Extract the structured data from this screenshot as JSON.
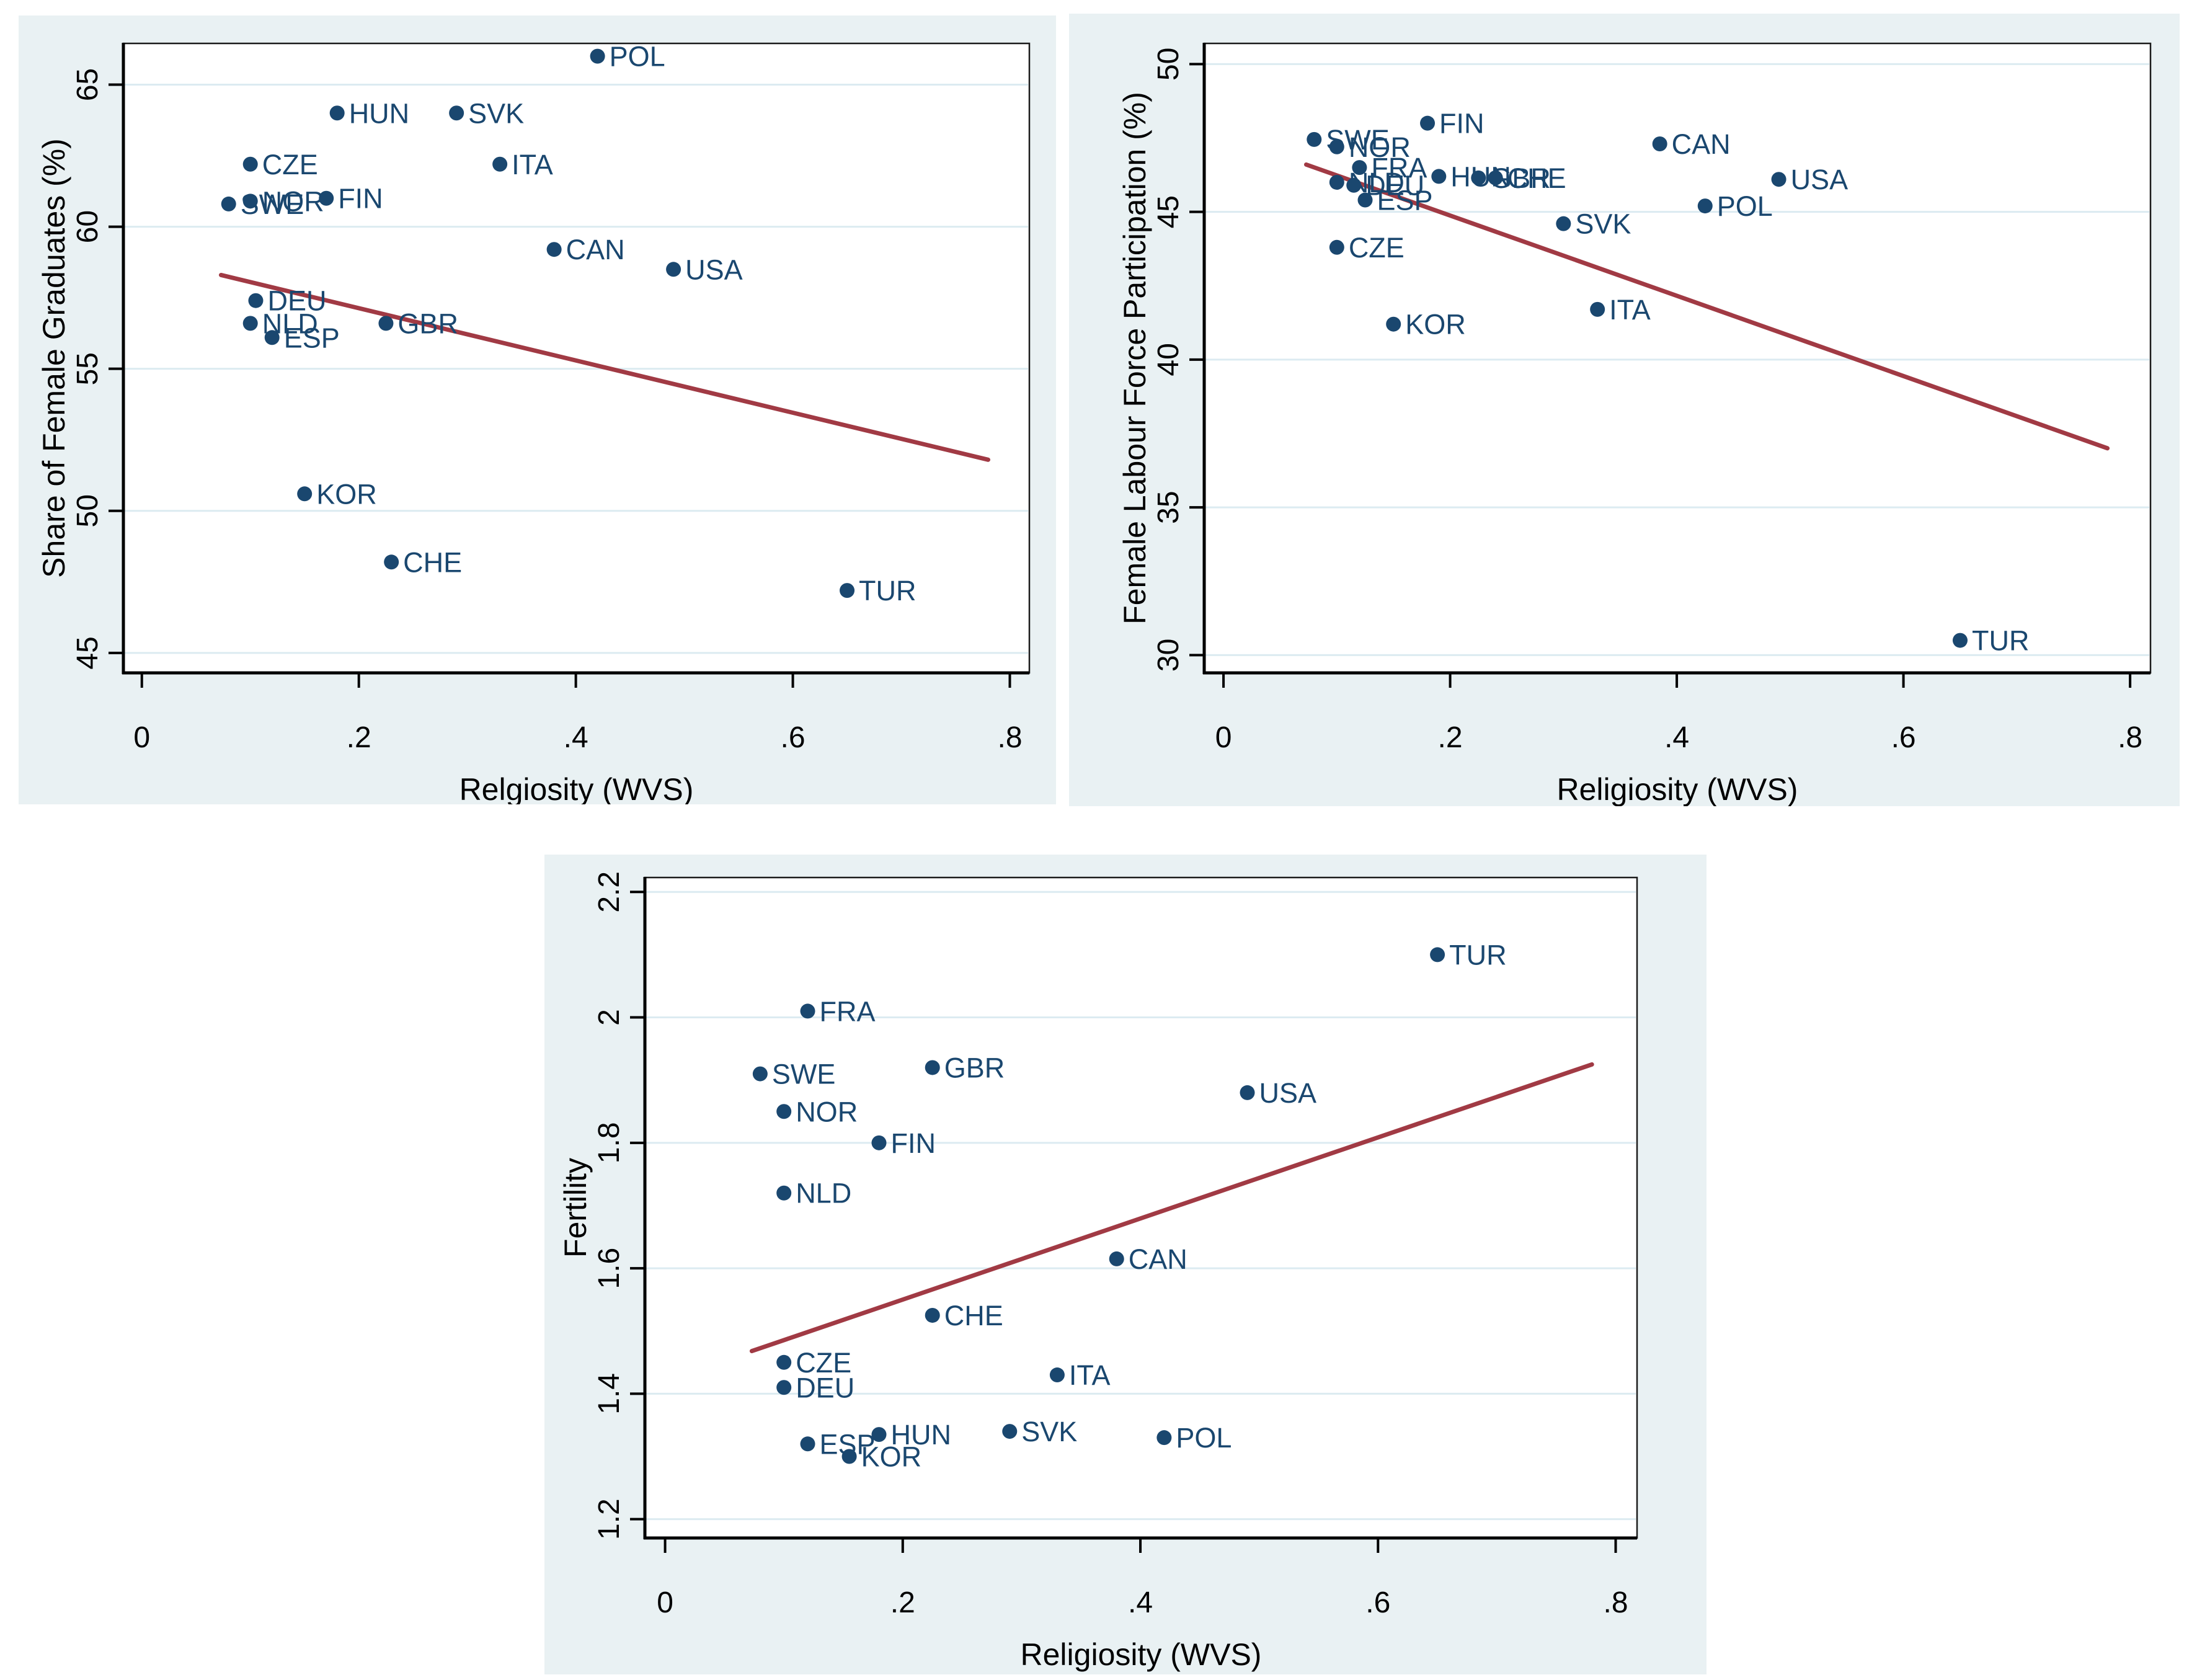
{
  "figure": {
    "description": "Three Stata-style scatter plots of country indicators against religiosity with linear fit lines",
    "panel_count": 3
  },
  "colors": {
    "panel_background": "#e9f1f3",
    "plot_background": "#ffffff",
    "gridline": "#dcebf1",
    "plot_border": "#1b1b1b",
    "axis_line": "#000000",
    "tick_text": "#000000",
    "marker": "#1a476f",
    "marker_label": "#1a476f",
    "fit_line": "#a13a44"
  },
  "chart_data": [
    {
      "id": "share-of-female-graduates",
      "type": "scatter",
      "xlabel": "Relgiosity (WVS)",
      "ylabel": "Share of Female Graduates (%)",
      "xlim": [
        -0.017,
        0.818
      ],
      "ylim": [
        44.3,
        66.45
      ],
      "grid": "horizontal",
      "legend": "none",
      "xticks": [
        {
          "v": 0.0,
          "label": "0"
        },
        {
          "v": 0.2,
          "label": ".2"
        },
        {
          "v": 0.4,
          "label": ".4"
        },
        {
          "v": 0.6,
          "label": ".6"
        },
        {
          "v": 0.8,
          "label": ".8"
        }
      ],
      "yticks": [
        {
          "v": 45,
          "label": "45"
        },
        {
          "v": 50,
          "label": "50"
        },
        {
          "v": 55,
          "label": "55"
        },
        {
          "v": 60,
          "label": "60"
        },
        {
          "v": 65,
          "label": "65"
        }
      ],
      "points": [
        {
          "label": "POL",
          "x": 0.42,
          "y": 66.0
        },
        {
          "label": "HUN",
          "x": 0.18,
          "y": 64.0
        },
        {
          "label": "SVK",
          "x": 0.29,
          "y": 64.0
        },
        {
          "label": "CZE",
          "x": 0.1,
          "y": 62.2
        },
        {
          "label": "ITA",
          "x": 0.33,
          "y": 62.2
        },
        {
          "label": "FIN",
          "x": 0.17,
          "y": 61.0
        },
        {
          "label": "NOR",
          "x": 0.1,
          "y": 60.9
        },
        {
          "label": "SWE",
          "x": 0.08,
          "y": 60.8
        },
        {
          "label": "CAN",
          "x": 0.38,
          "y": 59.2
        },
        {
          "label": "USA",
          "x": 0.49,
          "y": 58.5
        },
        {
          "label": "DEU",
          "x": 0.105,
          "y": 57.4
        },
        {
          "label": "NLD",
          "x": 0.1,
          "y": 56.6
        },
        {
          "label": "GBR",
          "x": 0.225,
          "y": 56.6
        },
        {
          "label": "ESP",
          "x": 0.12,
          "y": 56.1
        },
        {
          "label": "KOR",
          "x": 0.15,
          "y": 50.6
        },
        {
          "label": "CHE",
          "x": 0.23,
          "y": 48.2
        },
        {
          "label": "TUR",
          "x": 0.65,
          "y": 47.2
        }
      ],
      "fit_line": {
        "x1": 0.073,
        "y1": 58.3,
        "x2": 0.78,
        "y2": 51.8
      }
    },
    {
      "id": "female-labour-force-participation",
      "type": "scatter",
      "xlabel": "Religiosity (WVS)",
      "ylabel": "Female Labour Force Participation (%)",
      "xlim": [
        -0.017,
        0.818
      ],
      "ylim": [
        29.4,
        50.7
      ],
      "grid": "horizontal",
      "legend": "none",
      "xticks": [
        {
          "v": 0.0,
          "label": "0"
        },
        {
          "v": 0.2,
          "label": ".2"
        },
        {
          "v": 0.4,
          "label": ".4"
        },
        {
          "v": 0.6,
          "label": ".6"
        },
        {
          "v": 0.8,
          "label": ".8"
        }
      ],
      "yticks": [
        {
          "v": 30,
          "label": "30"
        },
        {
          "v": 35,
          "label": "35"
        },
        {
          "v": 40,
          "label": "40"
        },
        {
          "v": 45,
          "label": "45"
        },
        {
          "v": 50,
          "label": "50"
        }
      ],
      "points": [
        {
          "label": "FIN",
          "x": 0.18,
          "y": 48.0
        },
        {
          "label": "SWE",
          "x": 0.08,
          "y": 47.45
        },
        {
          "label": "NOR",
          "x": 0.1,
          "y": 47.2
        },
        {
          "label": "CAN",
          "x": 0.385,
          "y": 47.3
        },
        {
          "label": "FRA",
          "x": 0.12,
          "y": 46.5
        },
        {
          "label": "HUN",
          "x": 0.19,
          "y": 46.2
        },
        {
          "label": "GBR",
          "x": 0.225,
          "y": 46.15
        },
        {
          "label": "CHE",
          "x": 0.24,
          "y": 46.15
        },
        {
          "label": "USA",
          "x": 0.49,
          "y": 46.1
        },
        {
          "label": "NLD",
          "x": 0.1,
          "y": 46.0
        },
        {
          "label": "DEU",
          "x": 0.115,
          "y": 45.9
        },
        {
          "label": "ESP",
          "x": 0.125,
          "y": 45.4
        },
        {
          "label": "POL",
          "x": 0.425,
          "y": 45.2
        },
        {
          "label": "SVK",
          "x": 0.3,
          "y": 44.6
        },
        {
          "label": "CZE",
          "x": 0.1,
          "y": 43.8
        },
        {
          "label": "ITA",
          "x": 0.33,
          "y": 41.7
        },
        {
          "label": "KOR",
          "x": 0.15,
          "y": 41.2
        },
        {
          "label": "TUR",
          "x": 0.65,
          "y": 30.5
        }
      ],
      "fit_line": {
        "x1": 0.073,
        "y1": 46.6,
        "x2": 0.78,
        "y2": 37.0
      }
    },
    {
      "id": "fertility",
      "type": "scatter",
      "xlabel": "Religiosity (WVS)",
      "ylabel": "Fertility",
      "xlim": [
        -0.017,
        0.818
      ],
      "ylim": [
        1.17,
        2.223
      ],
      "grid": "horizontal",
      "legend": "none",
      "xticks": [
        {
          "v": 0.0,
          "label": "0"
        },
        {
          "v": 0.2,
          "label": ".2"
        },
        {
          "v": 0.4,
          "label": ".4"
        },
        {
          "v": 0.6,
          "label": ".6"
        },
        {
          "v": 0.8,
          "label": ".8"
        }
      ],
      "yticks": [
        {
          "v": 1.2,
          "label": "1.2"
        },
        {
          "v": 1.4,
          "label": "1.4"
        },
        {
          "v": 1.6,
          "label": "1.6"
        },
        {
          "v": 1.8,
          "label": "1.8"
        },
        {
          "v": 2.0,
          "label": "2"
        },
        {
          "v": 2.2,
          "label": "2.2"
        }
      ],
      "points": [
        {
          "label": "TUR",
          "x": 0.65,
          "y": 2.1
        },
        {
          "label": "FRA",
          "x": 0.12,
          "y": 2.01
        },
        {
          "label": "GBR",
          "x": 0.225,
          "y": 1.92
        },
        {
          "label": "SWE",
          "x": 0.08,
          "y": 1.91
        },
        {
          "label": "USA",
          "x": 0.49,
          "y": 1.88
        },
        {
          "label": "NOR",
          "x": 0.1,
          "y": 1.85
        },
        {
          "label": "FIN",
          "x": 0.18,
          "y": 1.8
        },
        {
          "label": "NLD",
          "x": 0.1,
          "y": 1.72
        },
        {
          "label": "CAN",
          "x": 0.38,
          "y": 1.615
        },
        {
          "label": "CHE",
          "x": 0.225,
          "y": 1.525
        },
        {
          "label": "CZE",
          "x": 0.1,
          "y": 1.45
        },
        {
          "label": "ITA",
          "x": 0.33,
          "y": 1.43
        },
        {
          "label": "DEU",
          "x": 0.1,
          "y": 1.41
        },
        {
          "label": "SVK",
          "x": 0.29,
          "y": 1.34
        },
        {
          "label": "HUN",
          "x": 0.18,
          "y": 1.335
        },
        {
          "label": "POL",
          "x": 0.42,
          "y": 1.33
        },
        {
          "label": "ESP",
          "x": 0.12,
          "y": 1.32
        },
        {
          "label": "KOR",
          "x": 0.155,
          "y": 1.3
        }
      ],
      "fit_line": {
        "x1": 0.073,
        "y1": 1.468,
        "x2": 0.78,
        "y2": 1.925
      }
    }
  ]
}
